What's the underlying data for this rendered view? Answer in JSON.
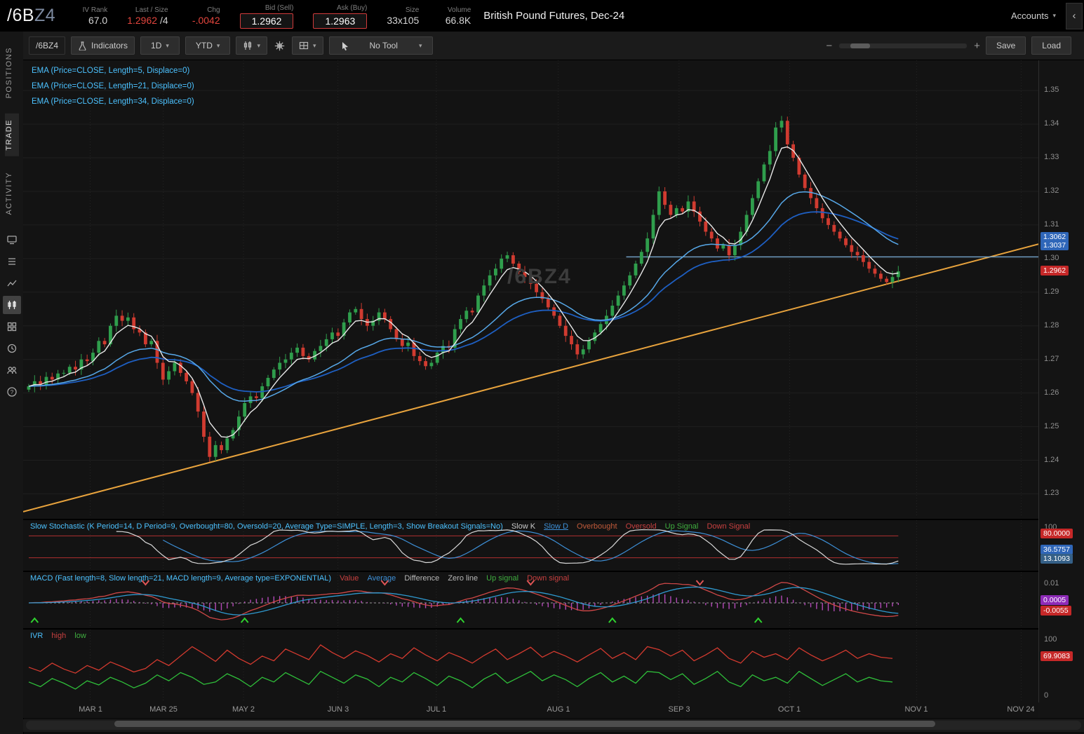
{
  "header": {
    "symbol": "/6B",
    "symbol_suffix": "Z4",
    "iv_rank_label": "IV Rank",
    "iv_rank": "67.0",
    "last_label": "Last / Size",
    "last": "1.2962",
    "last_size": "/4",
    "chg_label": "Chg",
    "chg": "-.0042",
    "bid_label": "Bid (Sell)",
    "bid": "1.2962",
    "ask_label": "Ask (Buy)",
    "ask": "1.2963",
    "size_label": "Size",
    "size": "33x105",
    "volume_label": "Volume",
    "volume": "66.8K",
    "description": "British Pound Futures, Dec-24",
    "accounts": "Accounts"
  },
  "sidebar": {
    "tabs": [
      "POSITIONS",
      "TRADE",
      "ACTIVITY"
    ],
    "icons": [
      "monitor",
      "watchlist",
      "analyze",
      "charts",
      "apps-grid",
      "history-clock",
      "community",
      "help"
    ]
  },
  "toolbar": {
    "symbol": "/6BZ4",
    "indicators": "Indicators",
    "timeframe": "1D",
    "range": "YTD",
    "tool": "No Tool",
    "save": "Save",
    "load": "Load"
  },
  "legend": {
    "emas": [
      "EMA (Price=CLOSE, Length=5, Displace=0)",
      "EMA (Price=CLOSE, Length=21, Displace=0)",
      "EMA (Price=CLOSE, Length=34, Displace=0)"
    ]
  },
  "watermark": "/6BZ4",
  "price_axis": {
    "ticks": [
      "1.35",
      "1.34",
      "1.33",
      "1.32",
      "1.31",
      "1.30",
      "1.29",
      "1.28",
      "1.27",
      "1.26",
      "1.25",
      "1.24",
      "1.23"
    ],
    "badges": [
      {
        "text": "1.3062",
        "type": "blue"
      },
      {
        "text": "1.3037",
        "type": "blue"
      },
      {
        "text": "1.2962",
        "type": "red"
      }
    ]
  },
  "stoch": {
    "title": "Slow Stochastic (K Period=14, D Period=9, Overbought=80, Oversold=20, Average Type=SIMPLE, Length=3, Show Breakout Signals=No)",
    "k": "Slow K",
    "d": "Slow D",
    "ob": "Overbought",
    "os": "Oversold",
    "up": "Up Signal",
    "down": "Down Signal",
    "axis_top": "100",
    "b_ob": "80.0000",
    "b_d": "36.5757",
    "b_k": "13.1093"
  },
  "macd": {
    "title": "MACD (Fast length=8, Slow length=21, MACD length=9, Average type=EXPONENTIAL)",
    "value": "Value",
    "average": "Average",
    "difference": "Difference",
    "zero": "Zero line",
    "up": "Up signal",
    "down": "Down signal",
    "axis_top": "0.01",
    "b_diff": "0.0005",
    "b_val": "-0.0055"
  },
  "ivr": {
    "title": "IVR",
    "high": "high",
    "low": "low",
    "axis_top": "100",
    "axis_bottom": "0",
    "badge": "69.9083"
  },
  "xaxis": {
    "labels": [
      {
        "text": "MAR 1",
        "f": 0.066
      },
      {
        "text": "MAR 25",
        "f": 0.138
      },
      {
        "text": "MAY 2",
        "f": 0.217
      },
      {
        "text": "JUN 3",
        "f": 0.31
      },
      {
        "text": "JUL 1",
        "f": 0.407
      },
      {
        "text": "AUG 1",
        "f": 0.527
      },
      {
        "text": "SEP 3",
        "f": 0.646
      },
      {
        "text": "OCT 1",
        "f": 0.755
      },
      {
        "text": "NOV 1",
        "f": 0.88
      },
      {
        "text": "NOV 24",
        "f": 0.983
      }
    ]
  },
  "chart_data": {
    "type": "candlestick",
    "title": "British Pound Futures, Dec-24 (/6BZ4), 1D YTD",
    "ylim": [
      1.223,
      1.359
    ],
    "price_step": 0.01,
    "first_open": 1.261,
    "candle_span_fraction": 0.862,
    "closes": [
      1.262,
      1.2635,
      1.2625,
      1.2648,
      1.264,
      1.2658,
      1.266,
      1.2678,
      1.267,
      1.27,
      1.2695,
      1.272,
      1.2755,
      1.2745,
      1.28,
      1.283,
      1.2815,
      1.2825,
      1.279,
      1.278,
      1.2745,
      1.2755,
      1.269,
      1.264,
      1.2665,
      1.269,
      1.266,
      1.2635,
      1.26,
      1.2545,
      1.247,
      1.241,
      1.2445,
      1.243,
      1.2465,
      1.249,
      1.253,
      1.257,
      1.259,
      1.2585,
      1.262,
      1.2645,
      1.267,
      1.269,
      1.27,
      1.272,
      1.2735,
      1.271,
      1.27,
      1.2725,
      1.274,
      1.276,
      1.278,
      1.277,
      1.281,
      1.284,
      1.285,
      1.282,
      1.28,
      1.2815,
      1.284,
      1.282,
      1.279,
      1.276,
      1.274,
      1.275,
      1.271,
      1.2695,
      1.268,
      1.269,
      1.272,
      1.274,
      1.2735,
      1.279,
      1.282,
      1.2845,
      1.284,
      1.289,
      1.292,
      1.295,
      1.297,
      1.3,
      1.301,
      1.2985,
      1.296,
      1.2945,
      1.2925,
      1.29,
      1.288,
      1.2855,
      1.283,
      1.28,
      1.277,
      1.2745,
      1.2715,
      1.273,
      1.2755,
      1.278,
      1.2805,
      1.283,
      1.286,
      1.289,
      1.292,
      1.295,
      1.2985,
      1.302,
      1.306,
      1.313,
      1.32,
      1.316,
      1.313,
      1.315,
      1.314,
      1.317,
      1.314,
      1.311,
      1.308,
      1.306,
      1.303,
      1.304,
      1.301,
      1.304,
      1.308,
      1.313,
      1.318,
      1.323,
      1.328,
      1.332,
      1.339,
      1.341,
      1.334,
      1.33,
      1.325,
      1.321,
      1.318,
      1.315,
      1.312,
      1.31,
      1.308,
      1.306,
      1.304,
      1.302,
      1.301,
      1.299,
      1.297,
      1.2955,
      1.294,
      1.293,
      1.2945,
      1.2962
    ],
    "emas": [
      5,
      21,
      34
    ],
    "trendline": {
      "start_price": 1.2247,
      "end_price": 1.3043
    },
    "hline_price": 1.3005,
    "hline_start_fraction": 0.594,
    "stoch_params": {
      "k_period": 14,
      "d_period": 9,
      "overbought": 80,
      "oversold": 20,
      "smooth": 3
    },
    "macd_params": {
      "fast": 8,
      "slow": 21,
      "signal": 9
    },
    "ivr_high": [
      55,
      48,
      62,
      52,
      45,
      58,
      50,
      64,
      56,
      47,
      53,
      68,
      58,
      74,
      90,
      78,
      65,
      84,
      70,
      60,
      74,
      66,
      86,
      77,
      68,
      93,
      80,
      70,
      83,
      75,
      64,
      78,
      70,
      88,
      76,
      66,
      80,
      72,
      62,
      75,
      86,
      68,
      78,
      89,
      72,
      82,
      74,
      64,
      76,
      87,
      70,
      80,
      68,
      90,
      85,
      74,
      84,
      66,
      76,
      88,
      70,
      62,
      82,
      72,
      78,
      68,
      88,
      76,
      66,
      74,
      84,
      70,
      78,
      72,
      70
    ],
    "ivr_low": [
      30,
      22,
      36,
      28,
      18,
      32,
      25,
      38,
      30,
      20,
      28,
      42,
      32,
      46,
      38,
      26,
      30,
      44,
      35,
      22,
      38,
      30,
      46,
      36,
      26,
      48,
      38,
      28,
      42,
      35,
      22,
      38,
      30,
      46,
      36,
      24,
      40,
      32,
      20,
      35,
      45,
      28,
      38,
      48,
      32,
      42,
      34,
      22,
      36,
      46,
      30,
      40,
      28,
      48,
      46,
      34,
      44,
      26,
      36,
      48,
      30,
      22,
      42,
      32,
      38,
      28,
      48,
      36,
      24,
      34,
      44,
      30,
      38,
      32,
      30
    ]
  }
}
